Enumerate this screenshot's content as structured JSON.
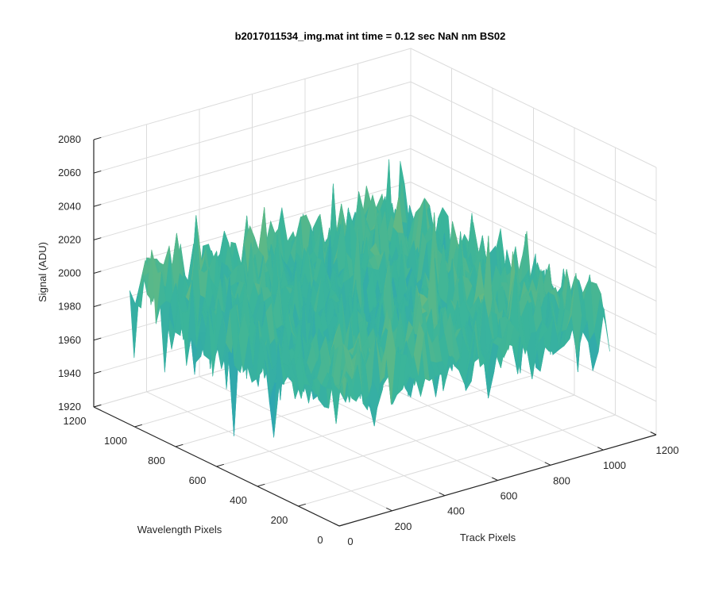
{
  "chart_data": {
    "type": "surface",
    "title": "b2017011534_img.mat int time = 0.12 sec  NaN nm BS02",
    "xlabel": "Track Pixels",
    "ylabel": "Wavelength Pixels",
    "zlabel": "Signal (ADU)",
    "xlim": [
      0,
      1200
    ],
    "ylim": [
      0,
      1200
    ],
    "zlim": [
      1920,
      2080
    ],
    "xticks": [
      "0",
      "200",
      "400",
      "600",
      "800",
      "1000",
      "1200"
    ],
    "yticks": [
      "0",
      "200",
      "400",
      "600",
      "800",
      "1000",
      "1200"
    ],
    "zticks": [
      "1920",
      "1940",
      "1960",
      "1980",
      "2000",
      "2020",
      "2040",
      "2060",
      "2080"
    ],
    "grid": true,
    "colormap": "parula",
    "colors": {
      "low": "#1a8fd6",
      "mid": "#3bb59a",
      "high": "#e6c43a",
      "axis": "#262626",
      "grid": "#dcdcdc"
    },
    "description_values": {
      "surface_extent": {
        "x": [
          0,
          1024
        ],
        "y": [
          0,
          1024
        ]
      },
      "mean_signal": 2000,
      "noise_range": [
        1930,
        2070
      ]
    }
  }
}
